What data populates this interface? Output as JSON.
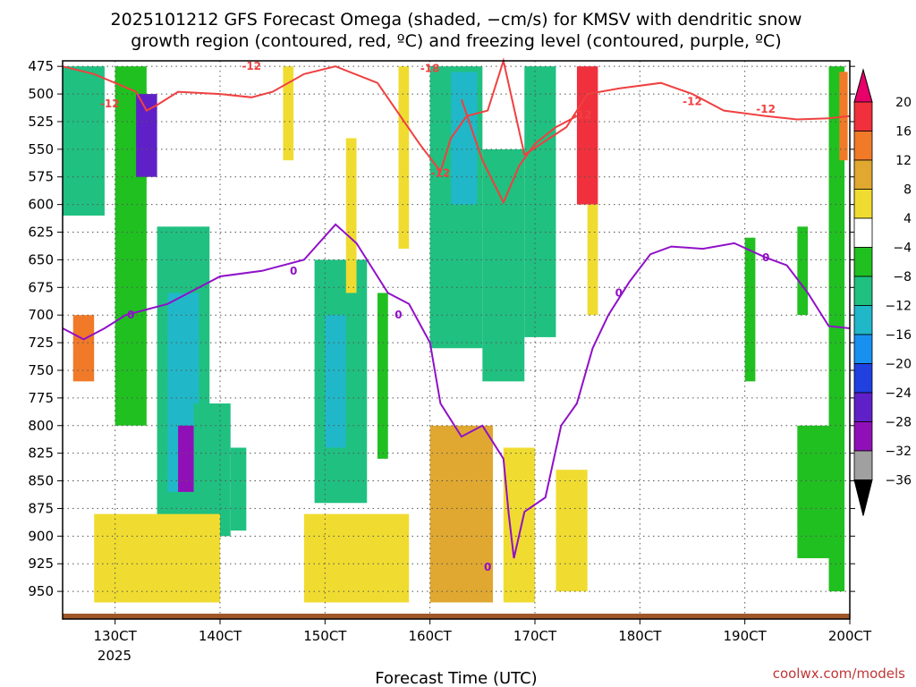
{
  "chart_data": {
    "type": "heatmap",
    "title_line1": "2025101212 GFS Forecast Omega (shaded, −cm/s) for KMSV with dendritic snow",
    "title_line2": "growth region (contoured, red, ºC) and freezing level (contoured, purple, ºC)",
    "xlabel": "Forecast Time (UTC)",
    "x_ticks": [
      "130CT",
      "140CT",
      "150CT",
      "160CT",
      "170CT",
      "180CT",
      "190CT",
      "200CT"
    ],
    "x_year": "2025",
    "x_range": [
      12.5,
      20.0
    ],
    "y_ticks": [
      "475",
      "500",
      "525",
      "550",
      "575",
      "600",
      "625",
      "650",
      "675",
      "700",
      "725",
      "750",
      "775",
      "800",
      "825",
      "850",
      "875",
      "900",
      "925",
      "950"
    ],
    "y_range": [
      975,
      470
    ],
    "colorbar_labels": [
      "20",
      "16",
      "12",
      "8",
      "4",
      "−4",
      "−8",
      "−12",
      "−16",
      "−20",
      "−24",
      "−28",
      "−32",
      "−36"
    ],
    "colorbar_colors": [
      "#e8006a",
      "#f0303c",
      "#f07a28",
      "#e0a830",
      "#f0dc30",
      "#ffffff",
      "#20c020",
      "#20c080",
      "#20b8c8",
      "#1890f0",
      "#2040e0",
      "#6020c8",
      "#9010b8",
      "#a0a0a0",
      "#000000"
    ],
    "shading": [
      {
        "x0": 12.5,
        "x1": 12.9,
        "p0": 475,
        "p1": 610,
        "v": -8
      },
      {
        "x0": 12.6,
        "x1": 12.8,
        "p0": 700,
        "p1": 760,
        "v": 14
      },
      {
        "x0": 13.0,
        "x1": 13.3,
        "p0": 475,
        "p1": 800,
        "v": -6
      },
      {
        "x0": 13.2,
        "x1": 13.4,
        "p0": 500,
        "p1": 575,
        "v": -26
      },
      {
        "x0": 13.4,
        "x1": 13.9,
        "p0": 620,
        "p1": 900,
        "v": -8
      },
      {
        "x0": 13.5,
        "x1": 13.8,
        "p0": 680,
        "p1": 860,
        "v": -14
      },
      {
        "x0": 13.6,
        "x1": 13.75,
        "p0": 800,
        "p1": 860,
        "v": -28
      },
      {
        "x0": 13.75,
        "x1": 14.1,
        "p0": 780,
        "p1": 900,
        "v": -10
      },
      {
        "x0": 14.1,
        "x1": 14.25,
        "p0": 820,
        "p1": 895,
        "v": -8
      },
      {
        "x0": 12.8,
        "x1": 14.0,
        "p0": 880,
        "p1": 960,
        "v": 5
      },
      {
        "x0": 14.6,
        "x1": 14.7,
        "p0": 475,
        "p1": 560,
        "v": 5
      },
      {
        "x0": 14.9,
        "x1": 15.4,
        "p0": 650,
        "p1": 870,
        "v": -8
      },
      {
        "x0": 15.0,
        "x1": 15.2,
        "p0": 700,
        "p1": 820,
        "v": -12
      },
      {
        "x0": 15.2,
        "x1": 15.3,
        "p0": 540,
        "p1": 680,
        "v": 5
      },
      {
        "x0": 15.5,
        "x1": 15.6,
        "p0": 680,
        "p1": 830,
        "v": -7
      },
      {
        "x0": 14.8,
        "x1": 15.8,
        "p0": 880,
        "p1": 960,
        "v": 5
      },
      {
        "x0": 15.7,
        "x1": 15.8,
        "p0": 475,
        "p1": 640,
        "v": 5
      },
      {
        "x0": 16.0,
        "x1": 16.5,
        "p0": 475,
        "p1": 730,
        "v": -8
      },
      {
        "x0": 16.2,
        "x1": 16.45,
        "p0": 480,
        "p1": 600,
        "v": -14
      },
      {
        "x0": 16.5,
        "x1": 16.9,
        "p0": 550,
        "p1": 760,
        "v": -8
      },
      {
        "x0": 16.9,
        "x1": 17.2,
        "p0": 475,
        "p1": 720,
        "v": -8
      },
      {
        "x0": 17.4,
        "x1": 17.6,
        "p0": 475,
        "p1": 600,
        "v": 18
      },
      {
        "x0": 17.5,
        "x1": 17.6,
        "p0": 600,
        "p1": 700,
        "v": 5
      },
      {
        "x0": 16.0,
        "x1": 16.6,
        "p0": 800,
        "p1": 960,
        "v": 8
      },
      {
        "x0": 16.7,
        "x1": 17.0,
        "p0": 820,
        "p1": 960,
        "v": 6
      },
      {
        "x0": 17.2,
        "x1": 17.5,
        "p0": 840,
        "p1": 950,
        "v": 7
      },
      {
        "x0": 19.0,
        "x1": 19.1,
        "p0": 630,
        "p1": 760,
        "v": -7
      },
      {
        "x0": 19.5,
        "x1": 19.6,
        "p0": 620,
        "p1": 700,
        "v": -7
      },
      {
        "x0": 19.8,
        "x1": 19.95,
        "p0": 475,
        "p1": 950,
        "v": -7
      },
      {
        "x0": 19.9,
        "x1": 19.98,
        "p0": 480,
        "p1": 560,
        "v": 14
      },
      {
        "x0": 19.5,
        "x1": 19.9,
        "p0": 800,
        "p1": 920,
        "v": -7
      }
    ],
    "contour_red_dgz": {
      "level_labels": [
        "-12",
        "-12",
        "-18",
        "-12",
        "-12",
        "-12",
        "-12"
      ],
      "line": [
        [
          12.5,
          475
        ],
        [
          12.8,
          482
        ],
        [
          13.0,
          490
        ],
        [
          13.2,
          498
        ],
        [
          13.3,
          515
        ],
        [
          13.4,
          510
        ],
        [
          13.6,
          498
        ],
        [
          14.0,
          500
        ],
        [
          14.3,
          503
        ],
        [
          14.5,
          498
        ],
        [
          14.8,
          482
        ],
        [
          15.1,
          475
        ],
        [
          15.5,
          490
        ],
        [
          15.9,
          545
        ],
        [
          16.1,
          570
        ],
        [
          16.2,
          540
        ],
        [
          16.35,
          520
        ],
        [
          16.55,
          515
        ],
        [
          16.7,
          470
        ],
        [
          16.9,
          555
        ],
        [
          17.3,
          530
        ],
        [
          17.5,
          500
        ],
        [
          17.8,
          495
        ],
        [
          18.2,
          490
        ],
        [
          18.5,
          500
        ],
        [
          18.8,
          515
        ],
        [
          19.2,
          520
        ],
        [
          19.5,
          523
        ],
        [
          19.8,
          522
        ],
        [
          20.0,
          520
        ]
      ],
      "line2": [
        [
          16.3,
          505
        ],
        [
          16.5,
          560
        ],
        [
          16.7,
          598
        ],
        [
          16.85,
          565
        ],
        [
          17.0,
          545
        ],
        [
          17.2,
          530
        ],
        [
          17.4,
          520
        ]
      ]
    },
    "contour_purple_freezing": {
      "level_labels": [
        "0",
        "0",
        "0",
        "0",
        "0",
        "0"
      ],
      "line": [
        [
          12.5,
          712
        ],
        [
          12.7,
          722
        ],
        [
          12.9,
          712
        ],
        [
          13.1,
          700
        ],
        [
          13.3,
          695
        ],
        [
          13.5,
          690
        ],
        [
          13.7,
          680
        ],
        [
          14.0,
          665
        ],
        [
          14.4,
          660
        ],
        [
          14.8,
          650
        ],
        [
          15.1,
          618
        ],
        [
          15.3,
          635
        ],
        [
          15.6,
          680
        ],
        [
          15.8,
          690
        ],
        [
          16.0,
          725
        ],
        [
          16.1,
          780
        ],
        [
          16.3,
          810
        ],
        [
          16.5,
          800
        ],
        [
          16.7,
          830
        ],
        [
          16.75,
          880
        ],
        [
          16.8,
          920
        ],
        [
          16.9,
          878
        ],
        [
          17.1,
          865
        ],
        [
          17.25,
          800
        ],
        [
          17.4,
          780
        ],
        [
          17.55,
          730
        ],
        [
          17.7,
          700
        ],
        [
          17.9,
          670
        ],
        [
          18.1,
          645
        ],
        [
          18.3,
          638
        ],
        [
          18.6,
          640
        ],
        [
          18.9,
          635
        ],
        [
          19.2,
          648
        ],
        [
          19.4,
          655
        ],
        [
          19.6,
          680
        ],
        [
          19.8,
          710
        ],
        [
          20.0,
          712
        ]
      ]
    },
    "credit": "coolwx.com/models"
  }
}
